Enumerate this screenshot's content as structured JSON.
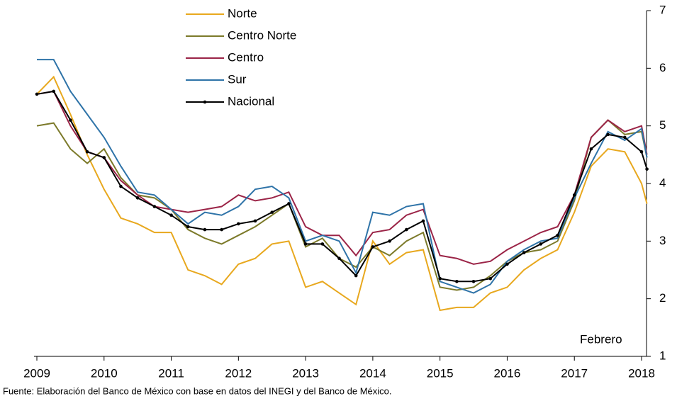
{
  "chart_data": {
    "type": "line",
    "x": [
      2009,
      2009.25,
      2009.5,
      2009.75,
      2010,
      2010.25,
      2010.5,
      2010.75,
      2011,
      2011.25,
      2011.5,
      2011.75,
      2012,
      2012.25,
      2012.5,
      2012.75,
      2013,
      2013.25,
      2013.5,
      2013.75,
      2014,
      2014.25,
      2014.5,
      2014.75,
      2015,
      2015.25,
      2015.5,
      2015.75,
      2016,
      2016.25,
      2016.5,
      2016.75,
      2017,
      2017.25,
      2017.5,
      2017.75,
      2018,
      2018.08
    ],
    "series": [
      {
        "name": "Norte",
        "color": "#e8a81e",
        "values": [
          5.55,
          5.85,
          5.2,
          4.5,
          3.9,
          3.4,
          3.3,
          3.15,
          3.15,
          2.5,
          2.4,
          2.25,
          2.6,
          2.7,
          2.95,
          3.0,
          2.2,
          2.3,
          2.1,
          1.9,
          3.0,
          2.6,
          2.8,
          2.85,
          1.8,
          1.85,
          1.85,
          2.1,
          2.2,
          2.5,
          2.7,
          2.85,
          3.5,
          4.3,
          4.6,
          4.55,
          4.0,
          3.65
        ]
      },
      {
        "name": "Centro Norte",
        "color": "#7c7a2a",
        "values": [
          5.0,
          5.05,
          4.6,
          4.35,
          4.6,
          4.1,
          3.8,
          3.75,
          3.55,
          3.2,
          3.05,
          2.95,
          3.1,
          3.25,
          3.45,
          3.65,
          2.9,
          3.05,
          2.7,
          2.55,
          2.9,
          2.75,
          3.0,
          3.15,
          2.2,
          2.15,
          2.2,
          2.4,
          2.65,
          2.8,
          2.85,
          3.0,
          3.7,
          4.8,
          5.1,
          4.85,
          4.9,
          4.45
        ]
      },
      {
        "name": "Centro",
        "color": "#9b2447",
        "values": [
          5.55,
          5.6,
          5.0,
          4.55,
          4.45,
          4.05,
          3.8,
          3.6,
          3.55,
          3.5,
          3.55,
          3.6,
          3.8,
          3.7,
          3.75,
          3.85,
          3.25,
          3.1,
          3.1,
          2.75,
          3.15,
          3.2,
          3.45,
          3.55,
          2.75,
          2.7,
          2.6,
          2.65,
          2.85,
          3.0,
          3.15,
          3.25,
          3.8,
          4.8,
          5.1,
          4.9,
          5.0,
          4.5
        ]
      },
      {
        "name": "Sur",
        "color": "#2e73a8",
        "values": [
          6.15,
          6.15,
          5.6,
          5.2,
          4.8,
          4.3,
          3.85,
          3.8,
          3.55,
          3.3,
          3.5,
          3.45,
          3.6,
          3.9,
          3.95,
          3.75,
          3.0,
          3.1,
          3.0,
          2.45,
          3.5,
          3.45,
          3.6,
          3.65,
          2.3,
          2.2,
          2.1,
          2.25,
          2.65,
          2.85,
          3.0,
          3.05,
          3.75,
          4.35,
          4.9,
          4.75,
          4.95,
          4.45
        ]
      },
      {
        "name": "Nacional",
        "color": "#000000",
        "values": [
          5.55,
          5.6,
          5.1,
          4.55,
          4.45,
          3.95,
          3.75,
          3.6,
          3.45,
          3.25,
          3.2,
          3.2,
          3.3,
          3.35,
          3.5,
          3.65,
          2.95,
          2.95,
          2.7,
          2.4,
          2.9,
          3.0,
          3.2,
          3.35,
          2.35,
          2.3,
          2.3,
          2.35,
          2.6,
          2.8,
          2.95,
          3.1,
          3.8,
          4.6,
          4.85,
          4.8,
          4.55,
          4.25
        ]
      }
    ],
    "xlim": [
      2009,
      2018.1
    ],
    "xticks": [
      2009,
      2010,
      2011,
      2012,
      2013,
      2014,
      2015,
      2016,
      2017,
      2018
    ],
    "ylim": [
      1,
      7
    ],
    "yticks": [
      1,
      2,
      3,
      4,
      5,
      6,
      7
    ],
    "annotation": "Febrero",
    "source": "Fuente: Elaboración del Banco de México con base en datos del INEGI y del Banco de México."
  }
}
